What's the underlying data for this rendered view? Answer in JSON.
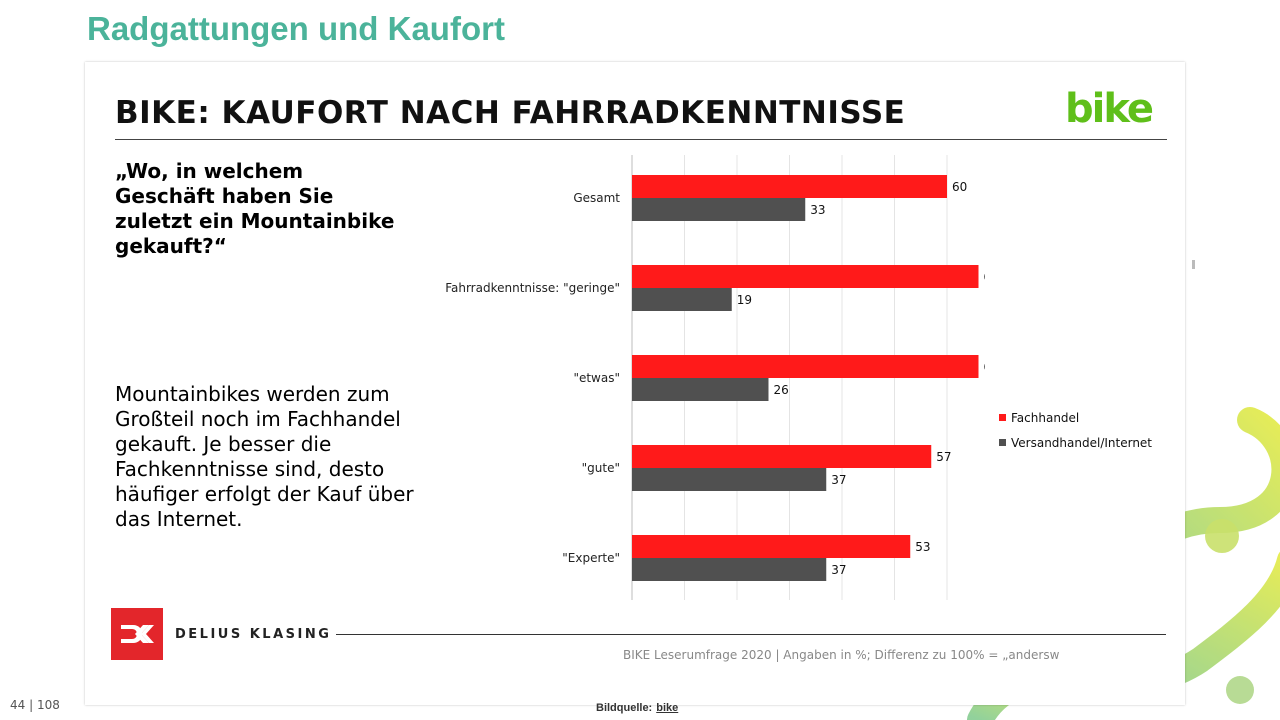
{
  "page": {
    "title": "Radgattungen und Kaufort",
    "page_number": "44 | 108",
    "credit_label": "Bildquelle:",
    "credit_link": "bike"
  },
  "slide": {
    "heading": "BIKE: KAUFORT NACH FAHRRADKENNTNISSE",
    "logo_text": "bike",
    "question": "„Wo, in welchem Geschäft haben Sie zuletzt ein Mountainbike gekauft?“",
    "explanation": "Mountainbikes werden zum Großteil noch im Fachhandel gekauft. Je besser die Fachkenntnisse sind, desto häufiger erfolgt der Kauf über das Internet.",
    "brand_name": "DELIUS KLASING",
    "source_note": "BIKE Leserumfrage 2020 | Angaben in %; Differenz zu 100% = „andersw"
  },
  "colors": {
    "title_green": "#4bb39a",
    "logo_green": "#5fbf1a",
    "series_red": "#ff1a1a",
    "series_gray": "#505050",
    "brand_red": "#e3262b"
  },
  "chart_data": {
    "type": "bar",
    "orientation": "horizontal",
    "categories": [
      "Gesamt",
      "Fahrradkenntnisse: \"geringe\"",
      "\"etwas\"",
      "\"gute\"",
      "\"Experte\""
    ],
    "series": [
      {
        "name": "Fachhandel",
        "values": [
          60,
          66,
          66,
          57,
          53
        ]
      },
      {
        "name": "Versandhandel/Internet",
        "values": [
          33,
          19,
          26,
          37,
          37
        ]
      }
    ],
    "xlim": [
      0,
      100
    ],
    "grid": true,
    "legend": "right"
  }
}
